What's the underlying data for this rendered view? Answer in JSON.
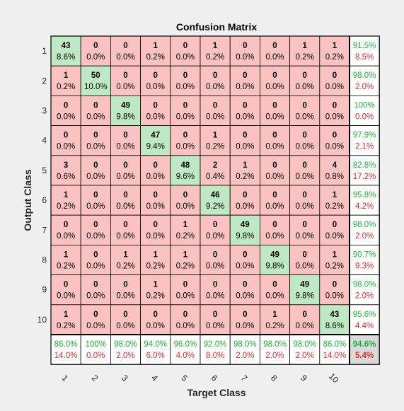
{
  "chart_data": {
    "type": "heatmap",
    "title": "Confusion Matrix",
    "xlabel": "Target Class",
    "ylabel": "Output Class",
    "x_tick_labels": [
      "1",
      "2",
      "3",
      "4",
      "5",
      "6",
      "7",
      "8",
      "9",
      "10"
    ],
    "y_tick_labels": [
      "1",
      "2",
      "3",
      "4",
      "5",
      "6",
      "7",
      "8",
      "9",
      "10"
    ],
    "counts": [
      [
        43,
        0,
        0,
        1,
        0,
        1,
        0,
        0,
        1,
        1
      ],
      [
        1,
        50,
        0,
        0,
        0,
        0,
        0,
        0,
        0,
        0
      ],
      [
        0,
        0,
        49,
        0,
        0,
        0,
        0,
        0,
        0,
        0
      ],
      [
        0,
        0,
        0,
        47,
        0,
        1,
        0,
        0,
        0,
        0
      ],
      [
        3,
        0,
        0,
        0,
        48,
        2,
        1,
        0,
        0,
        4
      ],
      [
        1,
        0,
        0,
        0,
        0,
        46,
        0,
        0,
        0,
        1
      ],
      [
        0,
        0,
        0,
        0,
        1,
        0,
        49,
        0,
        0,
        0
      ],
      [
        1,
        0,
        1,
        1,
        1,
        0,
        0,
        49,
        0,
        1
      ],
      [
        0,
        0,
        0,
        1,
        0,
        0,
        0,
        0,
        49,
        0
      ],
      [
        1,
        0,
        0,
        0,
        0,
        0,
        0,
        1,
        0,
        43
      ]
    ],
    "percents": [
      [
        "8.6%",
        "0.0%",
        "0.0%",
        "0.2%",
        "0.0%",
        "0.2%",
        "0.0%",
        "0.0%",
        "0.2%",
        "0.2%"
      ],
      [
        "0.2%",
        "10.0%",
        "0.0%",
        "0.0%",
        "0.0%",
        "0.0%",
        "0.0%",
        "0.0%",
        "0.0%",
        "0.0%"
      ],
      [
        "0.0%",
        "0.0%",
        "9.8%",
        "0.0%",
        "0.0%",
        "0.0%",
        "0.0%",
        "0.0%",
        "0.0%",
        "0.0%"
      ],
      [
        "0.0%",
        "0.0%",
        "0.0%",
        "9.4%",
        "0.0%",
        "0.2%",
        "0.0%",
        "0.0%",
        "0.0%",
        "0.0%"
      ],
      [
        "0.6%",
        "0.0%",
        "0.0%",
        "0.0%",
        "9.6%",
        "0.4%",
        "0.2%",
        "0.0%",
        "0.0%",
        "0.8%"
      ],
      [
        "0.2%",
        "0.0%",
        "0.0%",
        "0.0%",
        "0.0%",
        "9.2%",
        "0.0%",
        "0.0%",
        "0.0%",
        "0.2%"
      ],
      [
        "0.0%",
        "0.0%",
        "0.0%",
        "0.0%",
        "0.2%",
        "0.0%",
        "9.8%",
        "0.0%",
        "0.0%",
        "0.0%"
      ],
      [
        "0.2%",
        "0.0%",
        "0.2%",
        "0.2%",
        "0.2%",
        "0.0%",
        "0.0%",
        "9.8%",
        "0.0%",
        "0.2%"
      ],
      [
        "0.0%",
        "0.0%",
        "0.0%",
        "0.2%",
        "0.0%",
        "0.0%",
        "0.0%",
        "0.0%",
        "9.8%",
        "0.0%"
      ],
      [
        "0.2%",
        "0.0%",
        "0.0%",
        "0.0%",
        "0.0%",
        "0.0%",
        "0.0%",
        "0.2%",
        "0.0%",
        "8.6%"
      ]
    ],
    "row_summary": [
      [
        "91.5%",
        "8.5%"
      ],
      [
        "98.0%",
        "2.0%"
      ],
      [
        "100%",
        "0.0%"
      ],
      [
        "97.9%",
        "2.1%"
      ],
      [
        "82.8%",
        "17.2%"
      ],
      [
        "95.8%",
        "4.2%"
      ],
      [
        "98.0%",
        "2.0%"
      ],
      [
        "90.7%",
        "9.3%"
      ],
      [
        "98.0%",
        "2.0%"
      ],
      [
        "95.6%",
        "4.4%"
      ]
    ],
    "col_summary": [
      [
        "86.0%",
        "14.0%"
      ],
      [
        "100%",
        "0.0%"
      ],
      [
        "98.0%",
        "2.0%"
      ],
      [
        "94.0%",
        "6.0%"
      ],
      [
        "96.0%",
        "4.0%"
      ],
      [
        "92.0%",
        "8.0%"
      ],
      [
        "98.0%",
        "2.0%"
      ],
      [
        "98.0%",
        "2.0%"
      ],
      [
        "98.0%",
        "2.0%"
      ],
      [
        "86.0%",
        "14.0%"
      ]
    ],
    "overall": [
      "94.6%",
      "5.4%"
    ],
    "colors": {
      "background": "#f0f0f0",
      "correct_cell": "#bfe8c4",
      "incorrect_cell": "#fbc2c2",
      "summary_cell": "#ffffff",
      "overall_cell": "#d9d9d9",
      "grid_line": "#000000",
      "good_text": "#1fb839",
      "bad_text": "#e22d2d"
    }
  }
}
